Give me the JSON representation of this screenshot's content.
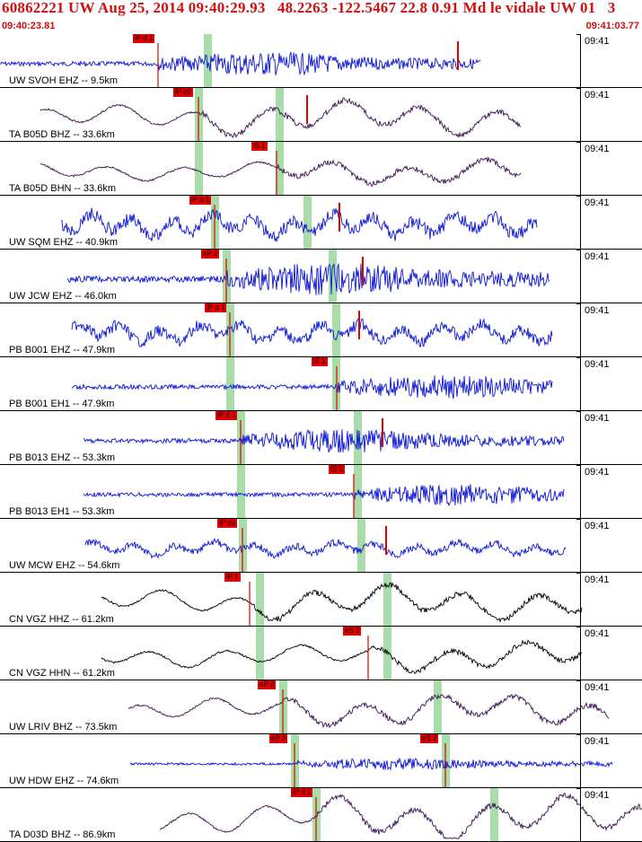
{
  "header": {
    "title": "60862221 UW Aug 25, 2014 09:40:29.93   48.2263 -122.5467 22.8 0.91 Md le vidale UW 01   3",
    "start_time": "09:40:23.81",
    "end_time": "09:41:03.77"
  },
  "traces": [
    {
      "station": "UW SVOH EHZ -- 9.5km",
      "time_label": "09:41",
      "color": "#0a14d6",
      "style": "burst",
      "start": 0,
      "end": 535,
      "amp": 10,
      "picks": [
        {
          "label": "iP d 1",
          "x": 176
        }
      ],
      "s_marks": [
        {
          "x": 510
        }
      ],
      "green": [
        231
      ]
    },
    {
      "station": "TA B05D BHZ -- 33.6km",
      "time_label": "09:41",
      "color": "#3a1050",
      "style": "wavy",
      "start": 45,
      "end": 580,
      "amp": 16,
      "picks": [
        {
          "label": "iP c0",
          "x": 221
        }
      ],
      "s_marks": [
        {
          "x": 342
        }
      ],
      "green": [
        221,
        311
      ]
    },
    {
      "station": "TA B05D BHN -- 33.6km",
      "time_label": "09:41",
      "color": "#3a1050",
      "style": "wavy",
      "start": 45,
      "end": 580,
      "amp": 12,
      "picks": [
        {
          "label": "iS 1",
          "x": 308
        }
      ],
      "s_marks": [],
      "green": [
        221,
        311
      ]
    },
    {
      "station": "UW SQM EHZ -- 40.9km",
      "time_label": "09:41",
      "color": "#0a14d6",
      "style": "noisy",
      "start": 68,
      "end": 598,
      "amp": 16,
      "picks": [
        {
          "label": "iP d 1",
          "x": 239
        }
      ],
      "s_marks": [
        {
          "x": 378
        }
      ],
      "green": [
        239,
        342
      ]
    },
    {
      "station": "UW JCW EHZ -- 46.0km",
      "time_label": "09:41",
      "color": "#0a14d6",
      "style": "burst",
      "start": 75,
      "end": 612,
      "amp": 14,
      "picks": [
        {
          "label": "eP 2",
          "x": 252
        }
      ],
      "s_marks": [
        {
          "x": 404
        }
      ],
      "green": [
        252,
        370
      ]
    },
    {
      "station": "PB B001 EHZ -- 47.9km",
      "time_label": "09:41",
      "color": "#0a14d6",
      "style": "noisy",
      "start": 80,
      "end": 615,
      "amp": 14,
      "picks": [
        {
          "label": "iP d 1",
          "x": 256
        }
      ],
      "s_marks": [
        {
          "x": 400
        }
      ],
      "green": [
        256,
        374
      ]
    },
    {
      "station": "PB B001 EH1 -- 47.9km",
      "time_label": "09:41",
      "color": "#0a14d6",
      "style": "burst",
      "start": 80,
      "end": 615,
      "amp": 10,
      "picks": [
        {
          "label": "iS 1",
          "x": 375
        }
      ],
      "s_marks": [],
      "green": [
        256,
        374
      ]
    },
    {
      "station": "PB B013 EHZ -- 53.3km",
      "time_label": "09:41",
      "color": "#0a14d6",
      "style": "burst",
      "start": 93,
      "end": 628,
      "amp": 10,
      "picks": [
        {
          "label": "iP d 1",
          "x": 268
        }
      ],
      "s_marks": [
        {
          "x": 426
        }
      ],
      "green": [
        268,
        398
      ]
    },
    {
      "station": "PB B013 EH1 -- 53.3km",
      "time_label": "09:41",
      "color": "#0a14d6",
      "style": "burst",
      "start": 93,
      "end": 628,
      "amp": 9,
      "picks": [
        {
          "label": "iS 1",
          "x": 394
        }
      ],
      "s_marks": [],
      "green": [
        268,
        398
      ]
    },
    {
      "station": "UW MCW EHZ -- 54.6km",
      "time_label": "09:41",
      "color": "#0a14d6",
      "style": "noisy",
      "start": 95,
      "end": 630,
      "amp": 9,
      "picks": [
        {
          "label": "iP c0",
          "x": 270
        }
      ],
      "s_marks": [
        {
          "x": 430
        }
      ],
      "green": [
        270,
        402
      ]
    },
    {
      "station": "CN VGZ HHZ -- 61.2km",
      "time_label": "09:41",
      "color": "#000000",
      "style": "wavy",
      "start": 113,
      "end": 648,
      "amp": 16,
      "picks": [
        {
          "label": "iP 1",
          "x": 278
        }
      ],
      "s_marks": [],
      "green": [
        289,
        431
      ]
    },
    {
      "station": "CN VGZ HHN -- 61.2km",
      "time_label": "09:41",
      "color": "#000000",
      "style": "wavy",
      "start": 113,
      "end": 648,
      "amp": 14,
      "picks": [
        {
          "label": "eS 2",
          "x": 410
        }
      ],
      "s_marks": [],
      "green": [
        289,
        431
      ]
    },
    {
      "station": "UW LRIV BHZ -- 73.5km",
      "time_label": "09:41",
      "color": "#3a1050",
      "style": "wavy",
      "start": 143,
      "end": 678,
      "amp": 15,
      "picks": [
        {
          "label": "eP 2",
          "x": 315
        }
      ],
      "s_marks": [],
      "green": [
        315,
        487
      ]
    },
    {
      "station": "UW HDW EHZ -- 74.6km",
      "time_label": "09:41",
      "color": "#0a14d6",
      "style": "burst",
      "start": 145,
      "end": 682,
      "amp": 5,
      "picks": [
        {
          "label": "eP 2",
          "x": 328
        },
        {
          "label": "eS 2",
          "x": 496
        }
      ],
      "s_marks": [],
      "green": [
        328,
        496
      ]
    },
    {
      "station": "TA D03D BHZ -- 86.9km",
      "time_label": "09:41",
      "color": "#3a1050",
      "style": "wavy",
      "start": 178,
      "end": 715,
      "amp": 20,
      "picks": [
        {
          "label": "iP d 1",
          "x": 352
        }
      ],
      "s_marks": [],
      "green": [
        352,
        550
      ]
    }
  ]
}
